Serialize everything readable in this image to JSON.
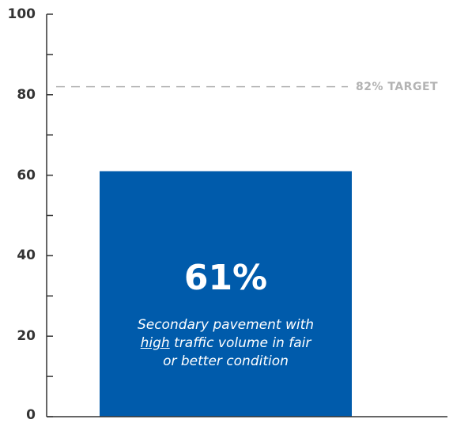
{
  "chart_data": {
    "type": "bar",
    "categories": [
      ""
    ],
    "values": [
      61
    ],
    "ylim": [
      0,
      100
    ],
    "yticks": [
      0,
      20,
      40,
      60,
      80,
      100
    ],
    "y_minor_ticks": [
      10,
      30,
      50,
      70,
      90
    ],
    "reference_line": {
      "value": 82,
      "label": "82% TARGET",
      "style": "dashed"
    },
    "bar_value_label": "61%",
    "bar_caption": {
      "before": "Secondary pavement with",
      "emphasis": "high",
      "after_line2": " traffic volume in fair",
      "line3": "or better condition"
    },
    "grid": false,
    "legend": "none",
    "colors": {
      "bar": "#005bab",
      "axis": "#333333",
      "target": "#b3b3b3",
      "text": "#333333"
    }
  }
}
